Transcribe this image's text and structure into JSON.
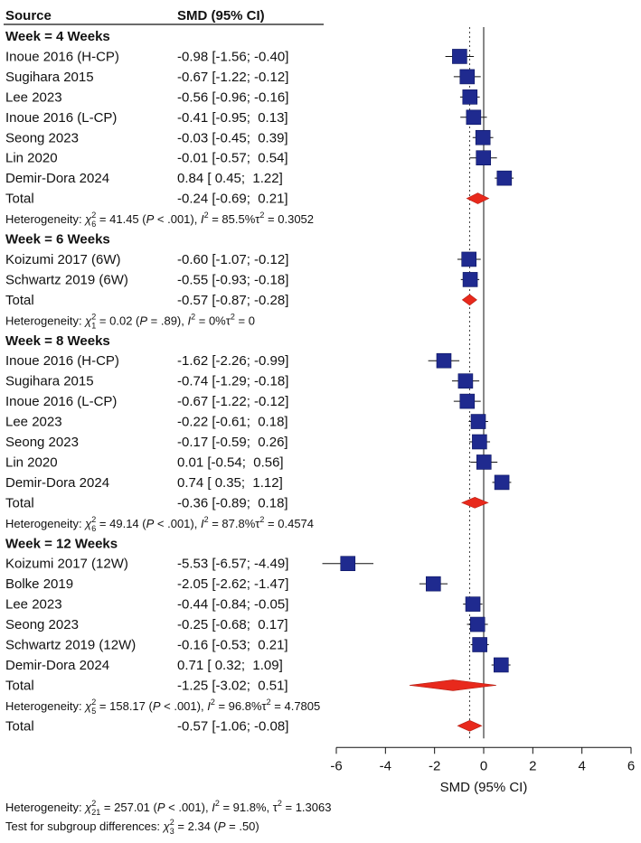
{
  "chart_data": {
    "type": "forest",
    "headers": {
      "source": "Source",
      "effect": "SMD (95% CI)"
    },
    "xlabel": "SMD (95% CI)",
    "xlim": [
      -6,
      6
    ],
    "xticks": [
      "-6",
      "-4",
      "-2",
      "0",
      "2",
      "4",
      "6"
    ],
    "tick_values": [
      -6,
      -4,
      -2,
      0,
      2,
      4,
      6
    ],
    "overall_reference_line": -0.57,
    "colors": {
      "square": "#1f2a8f",
      "diamond": "#e8291c"
    },
    "groups": [
      {
        "label": "Week = 4 Weeks",
        "studies": [
          {
            "name": "Inoue 2016 (H-CP)",
            "ci_text": "-0.98 [-1.56; -0.40]",
            "smd": -0.98,
            "lo": -1.56,
            "hi": -0.4
          },
          {
            "name": "Sugihara 2015",
            "ci_text": "-0.67 [-1.22; -0.12]",
            "smd": -0.67,
            "lo": -1.22,
            "hi": -0.12
          },
          {
            "name": "Lee 2023",
            "ci_text": "-0.56 [-0.96; -0.16]",
            "smd": -0.56,
            "lo": -0.96,
            "hi": -0.16
          },
          {
            "name": "Inoue 2016 (L-CP)",
            "ci_text": "-0.41 [-0.95;  0.13]",
            "smd": -0.41,
            "lo": -0.95,
            "hi": 0.13
          },
          {
            "name": "Seong 2023",
            "ci_text": "-0.03 [-0.45;  0.39]",
            "smd": -0.03,
            "lo": -0.45,
            "hi": 0.39
          },
          {
            "name": "Lin 2020",
            "ci_text": "-0.01 [-0.57;  0.54]",
            "smd": -0.01,
            "lo": -0.57,
            "hi": 0.54
          },
          {
            "name": "Demir-Dora 2024",
            "ci_text": "0.84 [ 0.45;  1.22]",
            "smd": 0.84,
            "lo": 0.45,
            "hi": 1.22
          }
        ],
        "total": {
          "name": "Total",
          "ci_text": "-0.24 [-0.69;  0.21]",
          "smd": -0.24,
          "lo": -0.69,
          "hi": 0.21
        },
        "het": {
          "prefix": "Heterogeneity: ",
          "chi": "χ",
          "sup": "2",
          "sub": "6",
          "stat": " = 41.45 (",
          "p": "P",
          "p_rest": " < .001), ",
          "i": "I",
          "i_sup": "2",
          "i_rest": " = 85.5%",
          "tau": "τ",
          "tau_sup": "2",
          "tau_rest": " = 0.3052"
        }
      },
      {
        "label": "Week = 6 Weeks",
        "studies": [
          {
            "name": "Koizumi 2017 (6W)",
            "ci_text": "-0.60 [-1.07; -0.12]",
            "smd": -0.6,
            "lo": -1.07,
            "hi": -0.12
          },
          {
            "name": "Schwartz 2019 (6W)",
            "ci_text": "-0.55 [-0.93; -0.18]",
            "smd": -0.55,
            "lo": -0.93,
            "hi": -0.18
          }
        ],
        "total": {
          "name": "Total",
          "ci_text": "-0.57 [-0.87; -0.28]",
          "smd": -0.57,
          "lo": -0.87,
          "hi": -0.28
        },
        "het": {
          "prefix": "Heterogeneity: ",
          "chi": "χ",
          "sup": "2",
          "sub": "1",
          "stat": " = 0.02 (",
          "p": "P",
          "p_rest": " = .89), ",
          "i": "I",
          "i_sup": "2",
          "i_rest": " = 0%",
          "tau": "τ",
          "tau_sup": "2",
          "tau_rest": " = 0"
        }
      },
      {
        "label": "Week = 8 Weeks",
        "studies": [
          {
            "name": "Inoue 2016 (H-CP)",
            "ci_text": "-1.62 [-2.26; -0.99]",
            "smd": -1.62,
            "lo": -2.26,
            "hi": -0.99
          },
          {
            "name": "Sugihara 2015",
            "ci_text": "-0.74 [-1.29; -0.18]",
            "smd": -0.74,
            "lo": -1.29,
            "hi": -0.18
          },
          {
            "name": "Inoue 2016 (L-CP)",
            "ci_text": "-0.67 [-1.22; -0.12]",
            "smd": -0.67,
            "lo": -1.22,
            "hi": -0.12
          },
          {
            "name": "Lee 2023",
            "ci_text": "-0.22 [-0.61;  0.18]",
            "smd": -0.22,
            "lo": -0.61,
            "hi": 0.18
          },
          {
            "name": "Seong 2023",
            "ci_text": "-0.17 [-0.59;  0.26]",
            "smd": -0.17,
            "lo": -0.59,
            "hi": 0.26
          },
          {
            "name": "Lin 2020",
            "ci_text": "0.01 [-0.54;  0.56]",
            "smd": 0.01,
            "lo": -0.54,
            "hi": 0.56
          },
          {
            "name": "Demir-Dora 2024",
            "ci_text": "0.74 [ 0.35;  1.12]",
            "smd": 0.74,
            "lo": 0.35,
            "hi": 1.12
          }
        ],
        "total": {
          "name": "Total",
          "ci_text": "-0.36 [-0.89;  0.18]",
          "smd": -0.36,
          "lo": -0.89,
          "hi": 0.18
        },
        "het": {
          "prefix": "Heterogeneity: ",
          "chi": "χ",
          "sup": "2",
          "sub": "6",
          "stat": " = 49.14 (",
          "p": "P",
          "p_rest": " < .001), ",
          "i": "I",
          "i_sup": "2",
          "i_rest": " = 87.8%",
          "tau": "τ",
          "tau_sup": "2",
          "tau_rest": " = 0.4574"
        }
      },
      {
        "label": "Week = 12 Weeks",
        "studies": [
          {
            "name": "Koizumi 2017 (12W)",
            "ci_text": "-5.53 [-6.57; -4.49]",
            "smd": -5.53,
            "lo": -6.57,
            "hi": -4.49
          },
          {
            "name": "Bolke 2019",
            "ci_text": "-2.05 [-2.62; -1.47]",
            "smd": -2.05,
            "lo": -2.62,
            "hi": -1.47
          },
          {
            "name": "Lee 2023",
            "ci_text": "-0.44 [-0.84; -0.05]",
            "smd": -0.44,
            "lo": -0.84,
            "hi": -0.05
          },
          {
            "name": "Seong 2023",
            "ci_text": "-0.25 [-0.68;  0.17]",
            "smd": -0.25,
            "lo": -0.68,
            "hi": 0.17
          },
          {
            "name": "Schwartz 2019 (12W)",
            "ci_text": "-0.16 [-0.53;  0.21]",
            "smd": -0.16,
            "lo": -0.53,
            "hi": 0.21
          },
          {
            "name": "Demir-Dora 2024",
            "ci_text": "0.71 [ 0.32;  1.09]",
            "smd": 0.71,
            "lo": 0.32,
            "hi": 1.09
          }
        ],
        "total": {
          "name": "Total",
          "ci_text": "-1.25 [-3.02;  0.51]",
          "smd": -1.25,
          "lo": -3.02,
          "hi": 0.51
        },
        "het": {
          "prefix": "Heterogeneity: ",
          "chi": "χ",
          "sup": "2",
          "sub": "5",
          "stat": " = 158.17 (",
          "p": "P",
          "p_rest": " < .001), ",
          "i": "I",
          "i_sup": "2",
          "i_rest": " = 96.8%",
          "tau": "τ",
          "tau_sup": "2",
          "tau_rest": " = 4.7805"
        }
      }
    ],
    "overall": {
      "name": "Total",
      "ci_text": "-0.57 [-1.06; -0.08]",
      "smd": -0.57,
      "lo": -1.06,
      "hi": -0.08
    },
    "footer": [
      {
        "prefix": "Heterogeneity: ",
        "chi": "χ",
        "sup": "2",
        "sub": "21",
        "stat": " = 257.01 (",
        "p": "P",
        "p_rest": " < .001), ",
        "i": "I",
        "i_sup": "2",
        "i_rest": " = 91.8%, ",
        "tau": "τ",
        "tau_sup": "2",
        "tau_rest": " = 1.3063"
      },
      {
        "prefix": "Test for subgroup differences: ",
        "chi": "χ",
        "sup": "2",
        "sub": "3",
        "stat": " = 2.34 (",
        "p": "P",
        "p_rest": " = .50)"
      }
    ]
  }
}
